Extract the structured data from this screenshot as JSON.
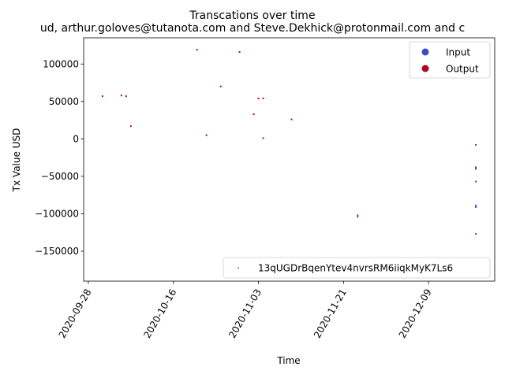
{
  "chart_data": {
    "type": "scatter",
    "title": "Transcations over time",
    "subtitle": "ud, arthur.goloves@tutanota.com and Steve.Dekhick@protonmail.com and c",
    "xlabel": "Time",
    "ylabel": "Tx Value USD",
    "x_tick_labels": [
      "2020-09-28",
      "2020-10-16",
      "2020-11-03",
      "2020-11-21",
      "2020-12-09"
    ],
    "y_tick_labels": [
      "−150000",
      "−100000",
      "−50000",
      "0",
      "50000",
      "100000"
    ],
    "x_range": [
      "2020-09-27",
      "2020-12-23"
    ],
    "y_range": [
      -190000,
      135000
    ],
    "grid": false,
    "series": [
      {
        "name": "Input",
        "color": "#3b4cc0",
        "points": [
          {
            "x": "2020-11-24",
            "y": -102000
          },
          {
            "x": "2020-11-24",
            "y": -104000
          },
          {
            "x": "2020-12-19",
            "y": -8000
          },
          {
            "x": "2020-12-19",
            "y": -38000
          },
          {
            "x": "2020-12-19",
            "y": -40000
          },
          {
            "x": "2020-12-19",
            "y": -57000
          },
          {
            "x": "2020-12-19",
            "y": -89000
          },
          {
            "x": "2020-12-19",
            "y": -91000
          },
          {
            "x": "2020-12-19",
            "y": -127000
          }
        ]
      },
      {
        "name": "Output",
        "color": "#b40426",
        "points": [
          {
            "x": "2020-10-01",
            "y": 57000
          },
          {
            "x": "2020-10-05",
            "y": 58000
          },
          {
            "x": "2020-10-06",
            "y": 57000
          },
          {
            "x": "2020-10-07",
            "y": 17000
          },
          {
            "x": "2020-10-21",
            "y": 119000
          },
          {
            "x": "2020-10-23",
            "y": 5000
          },
          {
            "x": "2020-10-26",
            "y": 70000
          },
          {
            "x": "2020-10-30",
            "y": 116000
          },
          {
            "x": "2020-11-02",
            "y": 33000
          },
          {
            "x": "2020-11-03",
            "y": 54000
          },
          {
            "x": "2020-11-04",
            "y": 54000
          },
          {
            "x": "2020-11-04",
            "y": 1000
          },
          {
            "x": "2020-11-10",
            "y": 26000
          }
        ]
      }
    ],
    "legends": [
      {
        "location": "upper right",
        "entries": [
          {
            "label": "Input",
            "color": "#3b4cc0"
          },
          {
            "label": "Output",
            "color": "#b40426"
          }
        ]
      },
      {
        "location": "lower right",
        "entries": [
          {
            "label": "13qUGDrBqenYtev4nvrsRM6iiqkMyK7Ls6",
            "color": "#1a9e7a"
          }
        ]
      }
    ]
  }
}
